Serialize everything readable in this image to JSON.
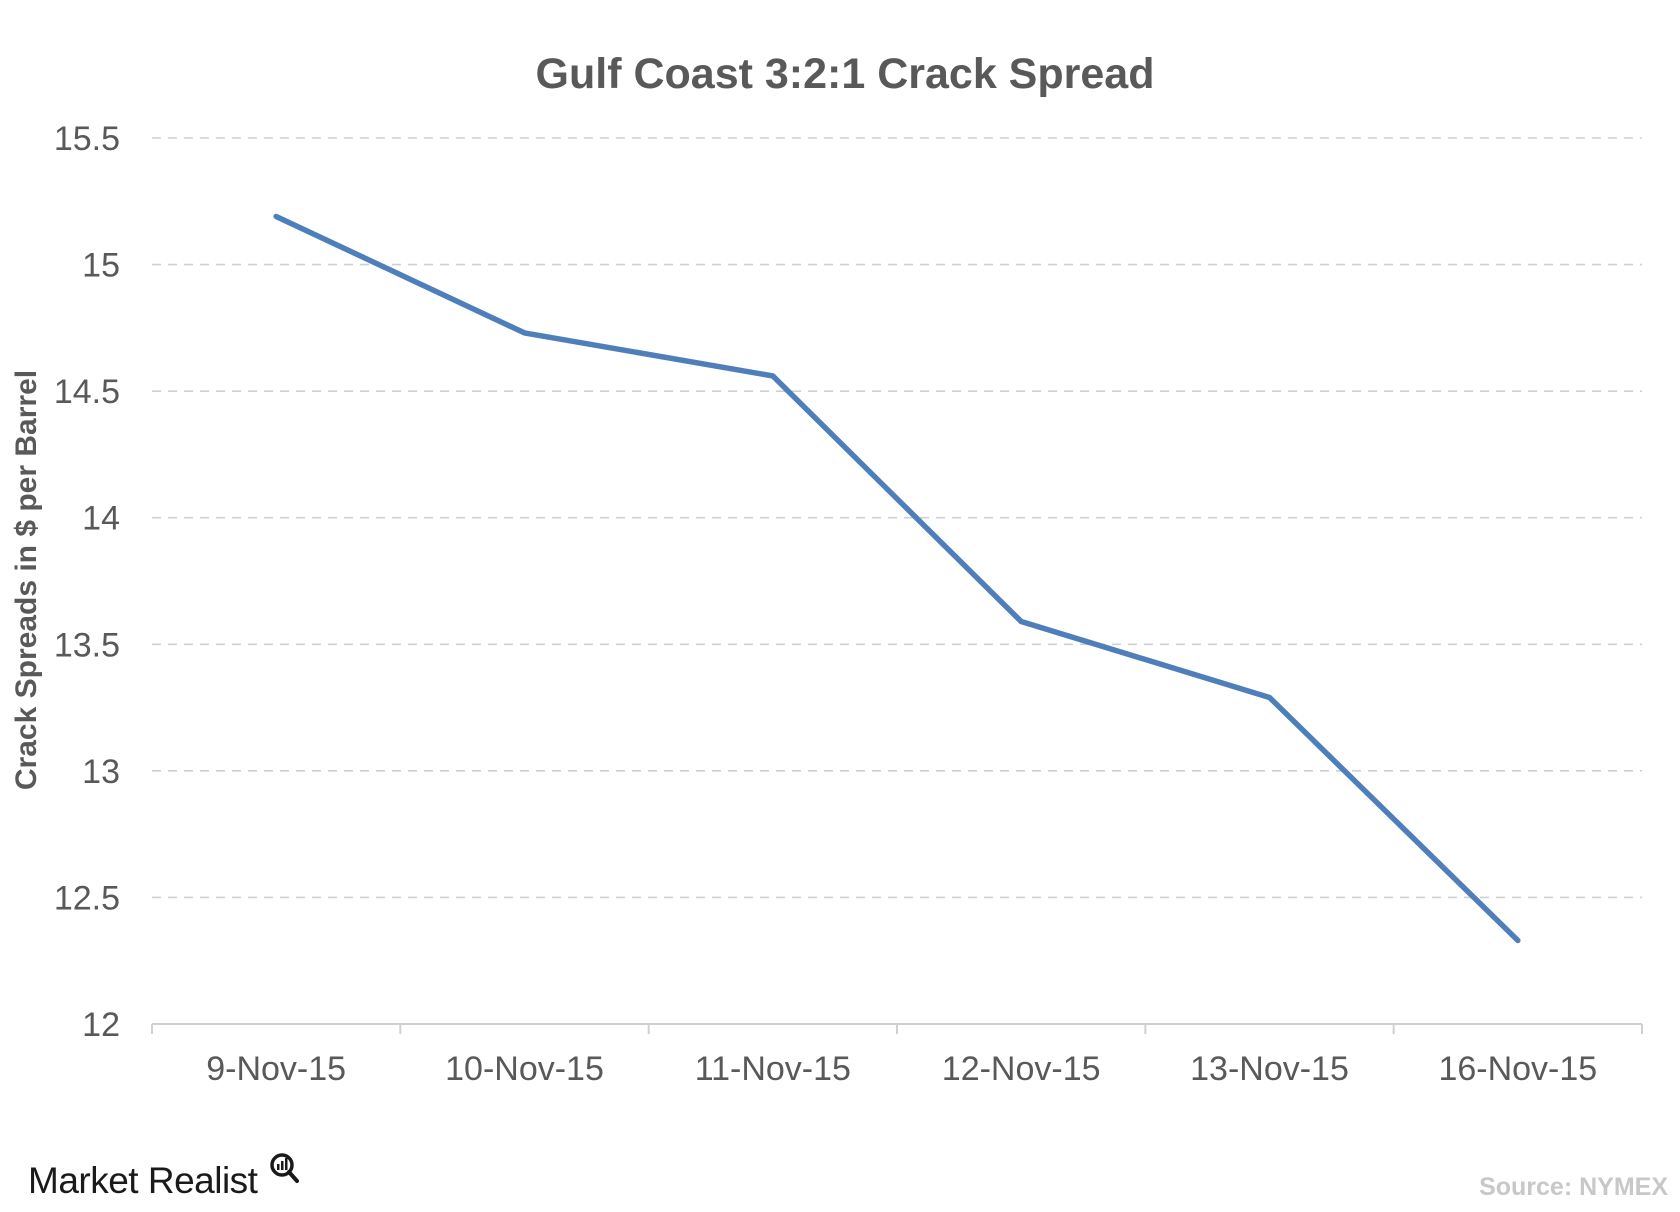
{
  "chart_data": {
    "type": "line",
    "title": "Gulf Coast 3:2:1 Crack Spread",
    "xlabel": "",
    "ylabel": "Crack Spreads in $ per Barrel",
    "categories": [
      "9-Nov-15",
      "10-Nov-15",
      "11-Nov-15",
      "12-Nov-15",
      "13-Nov-15",
      "16-Nov-15"
    ],
    "series": [
      {
        "values": [
          15.19,
          14.73,
          14.56,
          13.59,
          13.29,
          12.33
        ]
      }
    ],
    "ylim": [
      12,
      15.5
    ],
    "yticks": [
      "12",
      "12.5",
      "13",
      "13.5",
      "14",
      "14.5",
      "15",
      "15.5"
    ],
    "grid": true,
    "series_color": "#4f7fba"
  },
  "footer": {
    "brand": "Market Realist",
    "source": "Source: NYMEX"
  }
}
